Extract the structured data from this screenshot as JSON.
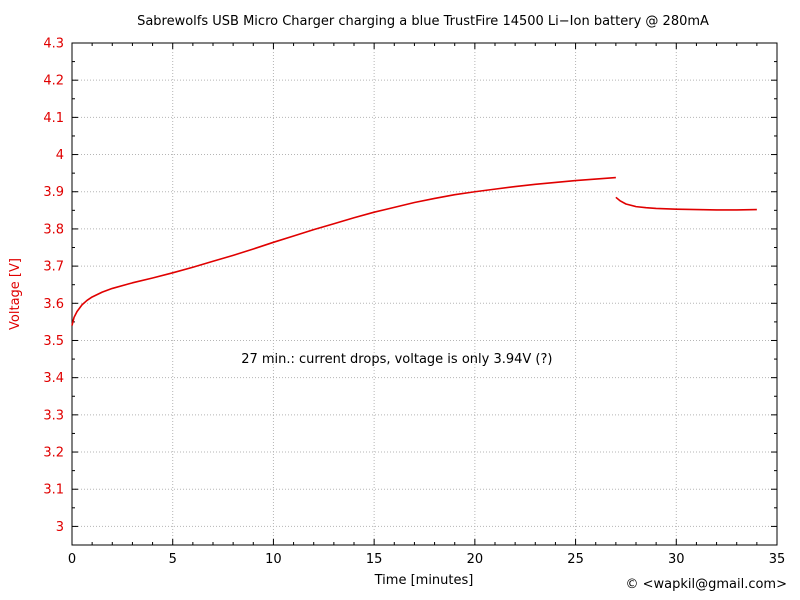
{
  "chart_data": {
    "type": "line",
    "title": "Sabrewolfs USB Micro Charger charging a blue TrustFire 14500 Li−Ion battery @ 280mA",
    "xlabel": "Time [minutes]",
    "ylabel": "Voltage [V]",
    "xlim": [
      0,
      35
    ],
    "ylim": [
      2.95,
      4.3
    ],
    "xticks": [
      0,
      5,
      10,
      15,
      20,
      25,
      30,
      35
    ],
    "yticks": [
      3,
      3.1,
      3.2,
      3.3,
      3.4,
      3.5,
      3.6,
      3.7,
      3.8,
      3.9,
      4,
      4.1,
      4.2,
      4.3
    ],
    "grid": true,
    "series": [
      {
        "color": "#e00000",
        "segments": [
          {
            "x": [
              0,
              0.1,
              0.25,
              0.5,
              0.75,
              1,
              1.5,
              2,
              3,
              4,
              5,
              6,
              7,
              8,
              9,
              10,
              11,
              12,
              13,
              14,
              15,
              16,
              17,
              18,
              19,
              20,
              21,
              22,
              23,
              24,
              25,
              26,
              27
            ],
            "y": [
              3.54,
              3.562,
              3.578,
              3.596,
              3.608,
              3.617,
              3.63,
              3.64,
              3.655,
              3.668,
              3.682,
              3.697,
              3.713,
              3.729,
              3.746,
              3.764,
              3.781,
              3.798,
              3.814,
              3.83,
              3.845,
              3.858,
              3.871,
              3.882,
              3.892,
              3.9,
              3.907,
              3.914,
              3.92,
              3.925,
              3.93,
              3.934,
              3.938
            ]
          },
          {
            "x": [
              27,
              27.2,
              27.5,
              28,
              28.5,
              29,
              30,
              31,
              32,
              33,
              34
            ],
            "y": [
              3.885,
              3.876,
              3.867,
              3.86,
              3.857,
              3.855,
              3.853,
              3.852,
              3.851,
              3.851,
              3.852
            ]
          }
        ]
      }
    ],
    "annotations": [
      {
        "text": "27 min.: current drops, voltage is only 3.94V (?)",
        "x": 8.4,
        "y": 3.45
      }
    ],
    "colors": {
      "axis_text_y": "#e00000",
      "axis_text_x": "#000000",
      "grid": "#b5b5b5"
    }
  },
  "copyright": "© <wapkil@gmail.com>"
}
